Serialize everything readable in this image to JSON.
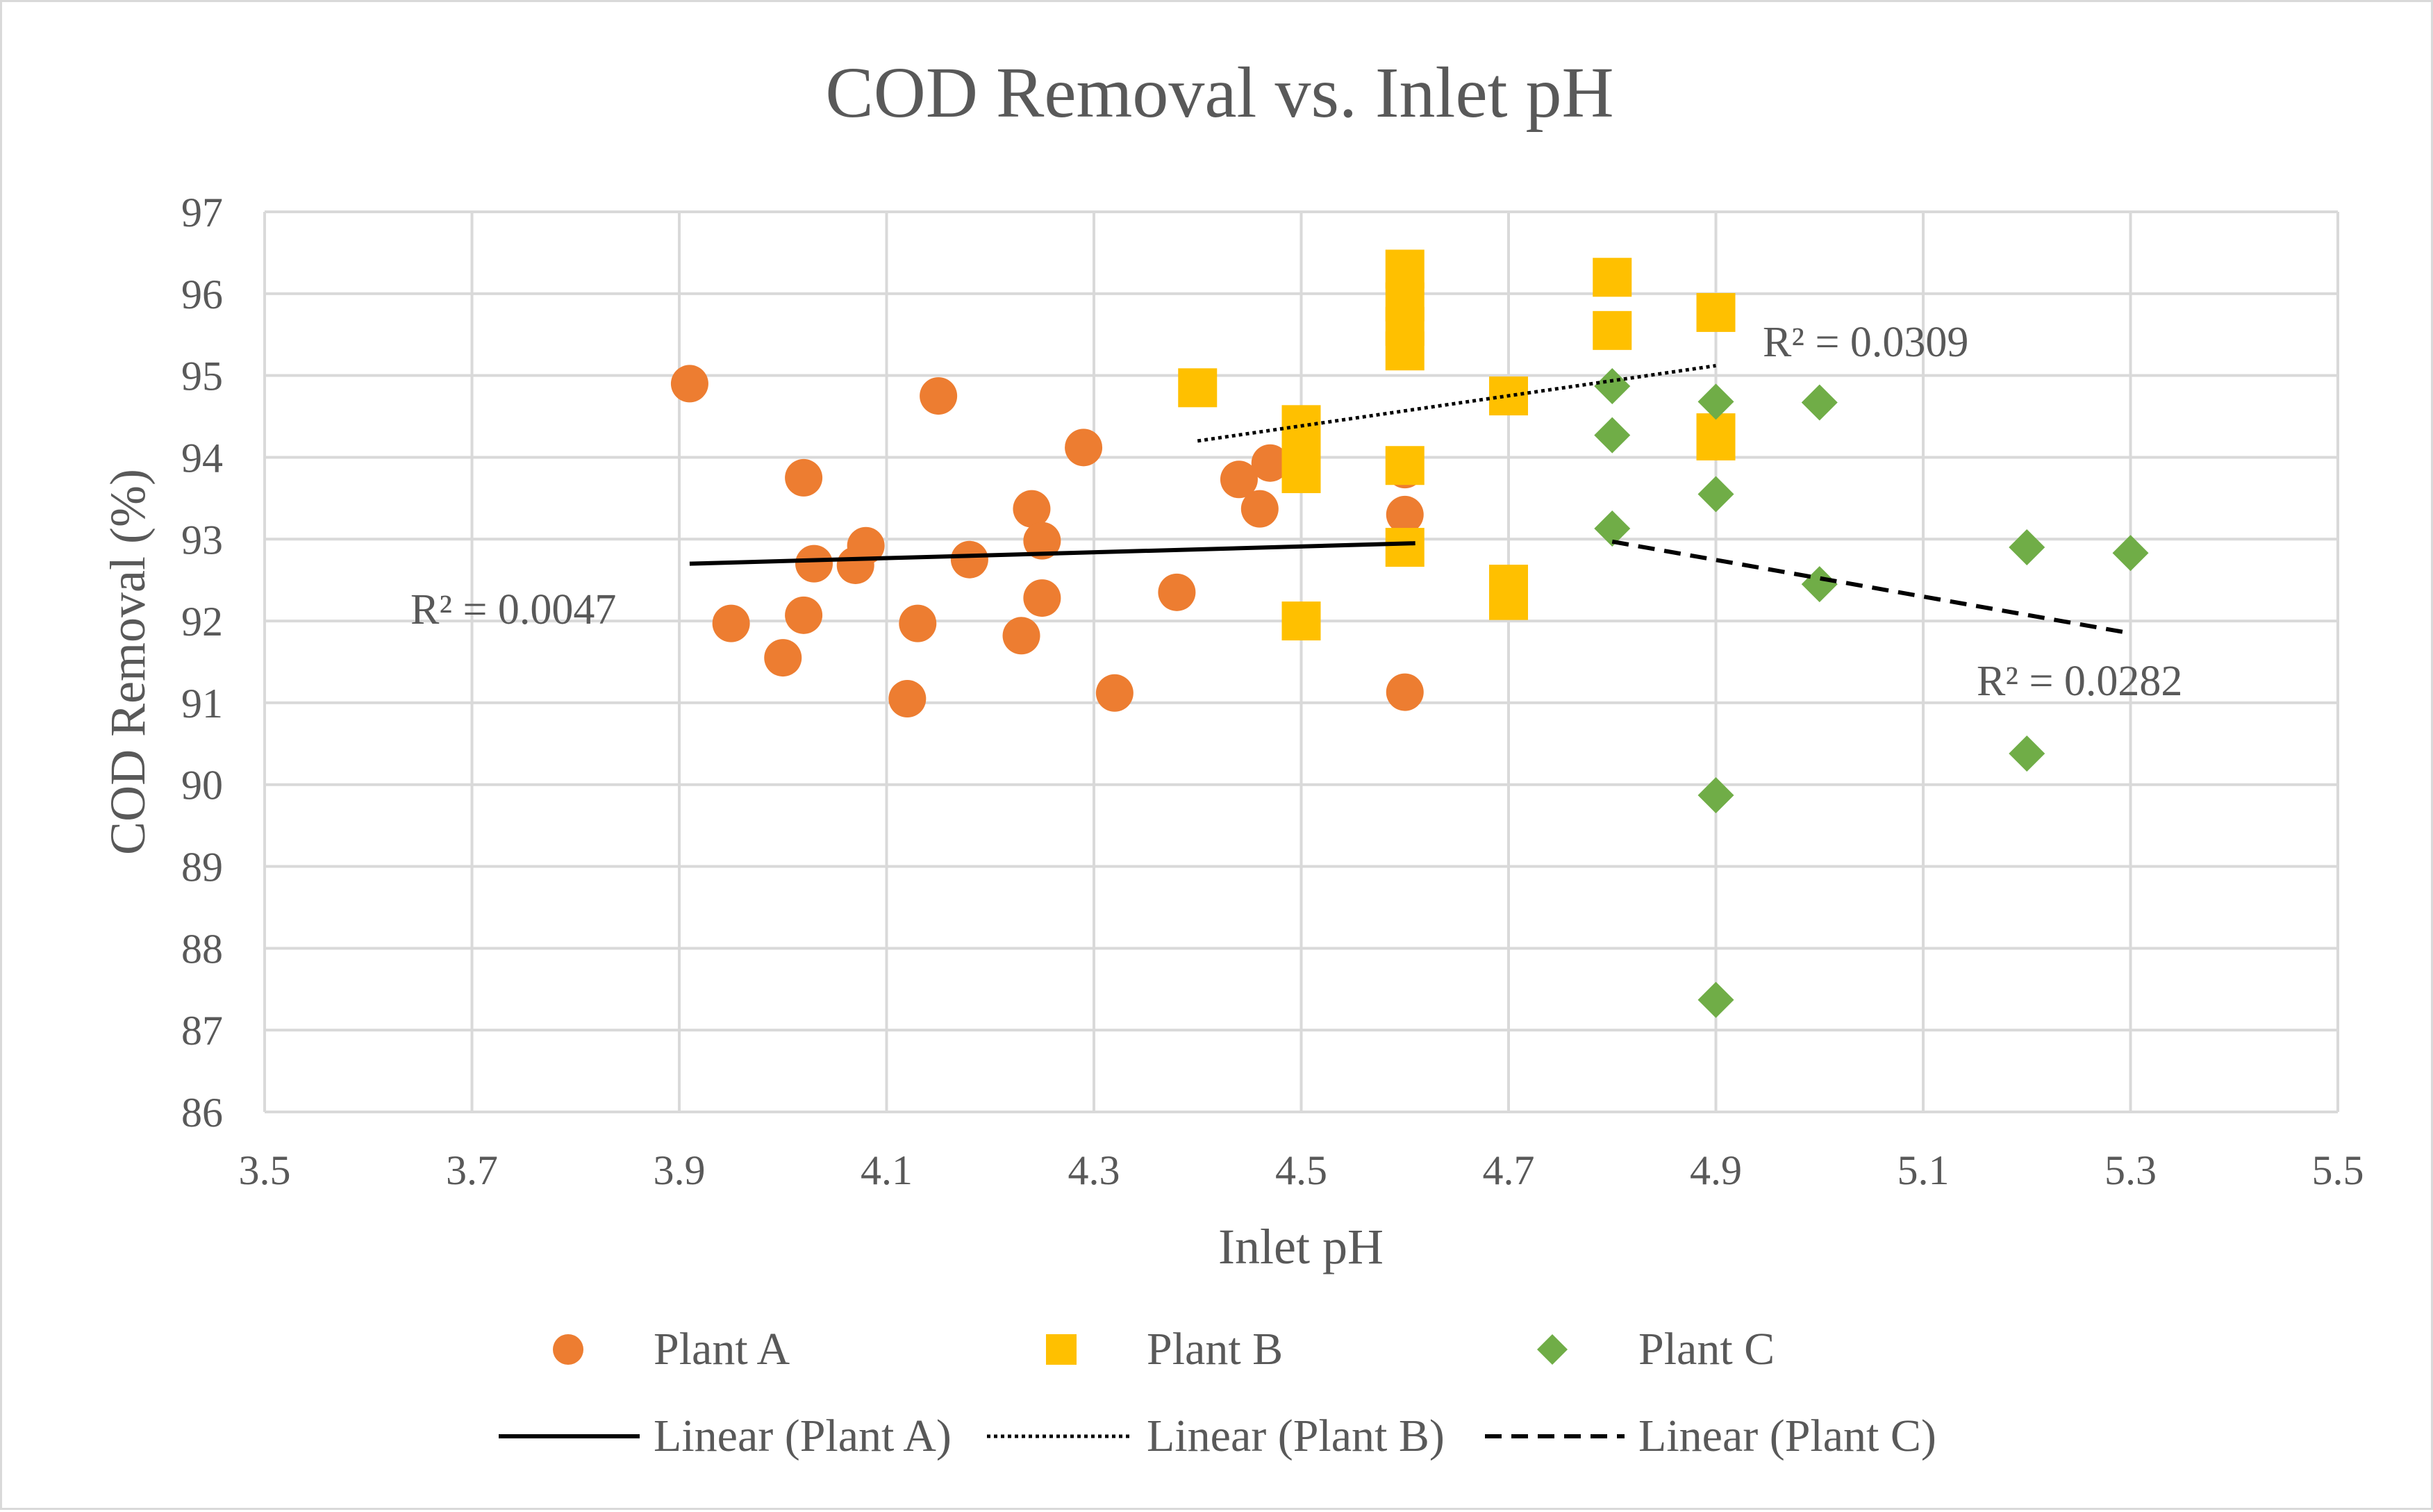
{
  "chart_data": {
    "type": "scatter",
    "title": "COD Removal vs. Inlet pH",
    "xlabel": "Inlet pH",
    "ylabel": "COD Removal (%)",
    "xlim": [
      3.5,
      5.5
    ],
    "ylim": [
      86,
      97
    ],
    "x_ticks": [
      3.5,
      3.7,
      3.9,
      4.1,
      4.3,
      4.5,
      4.7,
      4.9,
      5.1,
      5.3,
      5.5
    ],
    "x_tick_labels": [
      "3.5",
      "3.7",
      "3.9",
      "4.1",
      "4.3",
      "4.5",
      "4.7",
      "4.9",
      "5.1",
      "5.3",
      "5.5"
    ],
    "y_ticks": [
      86,
      87,
      88,
      89,
      90,
      91,
      92,
      93,
      94,
      95,
      96,
      97
    ],
    "y_tick_labels": [
      "86",
      "87",
      "88",
      "89",
      "90",
      "91",
      "92",
      "93",
      "94",
      "95",
      "96",
      "97"
    ],
    "grid": true,
    "legend_position": "bottom",
    "series": [
      {
        "name": "Plant A",
        "marker": "circle",
        "color": "#ED7D31",
        "points": [
          [
            3.91,
            94.9
          ],
          [
            3.95,
            91.97
          ],
          [
            4.0,
            91.55
          ],
          [
            4.02,
            93.75
          ],
          [
            4.02,
            92.07
          ],
          [
            4.03,
            92.7
          ],
          [
            4.07,
            92.68
          ],
          [
            4.08,
            92.92
          ],
          [
            4.12,
            91.05
          ],
          [
            4.13,
            91.97
          ],
          [
            4.15,
            94.75
          ],
          [
            4.18,
            92.75
          ],
          [
            4.23,
            91.82
          ],
          [
            4.24,
            93.37
          ],
          [
            4.25,
            92.98
          ],
          [
            4.25,
            92.28
          ],
          [
            4.29,
            94.12
          ],
          [
            4.32,
            91.12
          ],
          [
            4.38,
            92.35
          ],
          [
            4.44,
            93.73
          ],
          [
            4.46,
            93.37
          ],
          [
            4.47,
            93.93
          ],
          [
            4.6,
            93.85
          ],
          [
            4.6,
            93.3
          ],
          [
            4.6,
            91.13
          ]
        ],
        "trendline": {
          "name": "Linear (Plant A)",
          "style": "solid",
          "x": [
            3.91,
            4.61
          ],
          "y": [
            92.7,
            92.95
          ],
          "r2_label": "R² = 0.0047"
        }
      },
      {
        "name": "Plant B",
        "marker": "square",
        "color": "#FFC000",
        "points": [
          [
            4.4,
            94.85
          ],
          [
            4.5,
            94.4
          ],
          [
            4.5,
            94.1
          ],
          [
            4.5,
            93.8
          ],
          [
            4.5,
            92.0
          ],
          [
            4.6,
            96.3
          ],
          [
            4.6,
            95.9
          ],
          [
            4.6,
            95.6
          ],
          [
            4.6,
            95.3
          ],
          [
            4.6,
            93.9
          ],
          [
            4.6,
            92.9
          ],
          [
            4.7,
            94.75
          ],
          [
            4.7,
            92.45
          ],
          [
            4.7,
            92.25
          ],
          [
            4.8,
            96.2
          ],
          [
            4.8,
            95.55
          ],
          [
            4.9,
            95.77
          ],
          [
            4.9,
            94.3
          ],
          [
            4.9,
            94.2
          ]
        ],
        "trendline": {
          "name": "Linear (Plant B)",
          "style": "dotted",
          "x": [
            4.4,
            4.9
          ],
          "y": [
            94.2,
            95.12
          ],
          "r2_label": "R² = 0.0309"
        }
      },
      {
        "name": "Plant C",
        "marker": "diamond",
        "color": "#70AD47",
        "points": [
          [
            4.8,
            94.87
          ],
          [
            4.8,
            94.27
          ],
          [
            4.8,
            93.13
          ],
          [
            4.9,
            94.68
          ],
          [
            4.9,
            93.55
          ],
          [
            4.9,
            89.87
          ],
          [
            4.9,
            87.37
          ],
          [
            5.0,
            94.67
          ],
          [
            5.0,
            92.45
          ],
          [
            5.2,
            92.9
          ],
          [
            5.2,
            90.38
          ],
          [
            5.3,
            92.83
          ]
        ],
        "trendline": {
          "name": "Linear (Plant C)",
          "style": "dashed",
          "x": [
            4.8,
            5.3
          ],
          "y": [
            92.97,
            91.85
          ],
          "r2_label": "R² = 0.0282"
        }
      }
    ]
  }
}
